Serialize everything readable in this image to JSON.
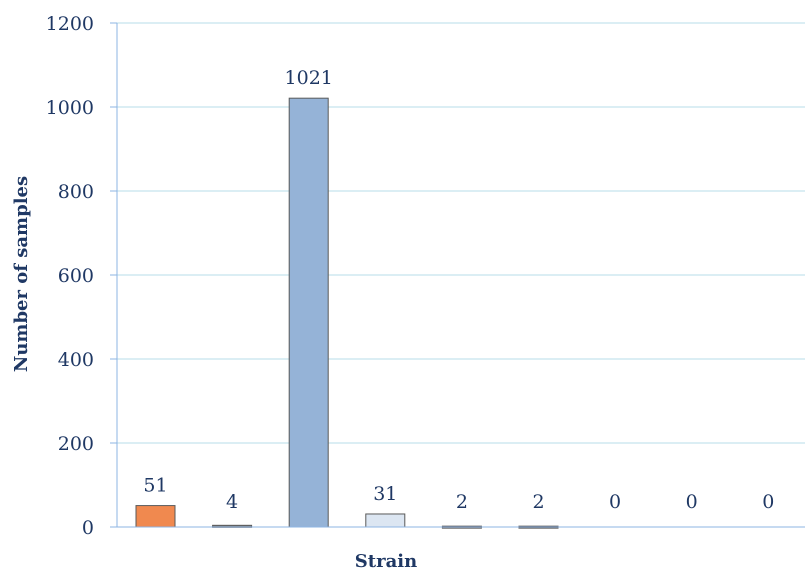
{
  "chart_data": {
    "type": "bar",
    "title": "",
    "xlabel": "Strain",
    "ylabel": "Number of samples",
    "ylim": [
      0,
      1200
    ],
    "yticks": [
      0,
      200,
      400,
      600,
      800,
      1000,
      1200
    ],
    "grid": true,
    "legend": "none",
    "categories": [
      "",
      "",
      "",
      "",
      "",
      "",
      "",
      "",
      ""
    ],
    "values": [
      51,
      4,
      1021,
      31,
      2,
      2,
      0,
      0,
      0
    ],
    "value_labels": [
      "51",
      "4",
      "1021",
      "31",
      "2",
      "2",
      "0",
      "0",
      "0"
    ],
    "colors": [
      "#f0894f",
      "#7f7f7f",
      "#95b3d7",
      "#dce6f2",
      "#bfbfbf",
      "#7f7f7f",
      "#7f7f7f",
      "#7f7f7f",
      "#7f7f7f"
    ],
    "gridline_color": "#b7dee8",
    "axis_color": "#8eb4e3"
  }
}
